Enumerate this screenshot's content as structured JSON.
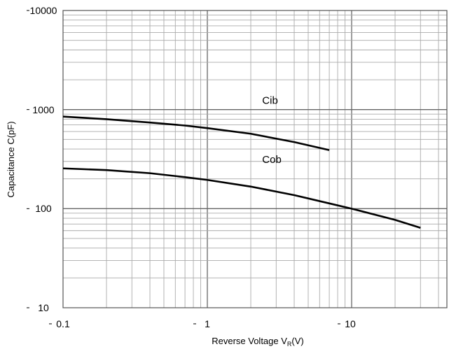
{
  "chart_data": {
    "type": "line",
    "title": "",
    "xlabel": "Reverse Voltage  V",
    "xlabel_sub": "R",
    "xlabel_suffix": "(V)",
    "ylabel": "Capacitance  C(pF)",
    "x_scale": "log",
    "y_scale": "log",
    "xlim": [
      0.1,
      50
    ],
    "ylim": [
      10,
      10000
    ],
    "grid": true,
    "x_tick_labels": [
      "0.1",
      "1",
      "10"
    ],
    "y_tick_labels": [
      "10",
      "100",
      "1000",
      "10000"
    ],
    "series": [
      {
        "name": "Cib",
        "color": "#000000",
        "x": [
          0.1,
          0.2,
          0.4,
          0.7,
          1.0,
          2.0,
          4.0,
          7.0
        ],
        "y": [
          850,
          800,
          740,
          690,
          650,
          570,
          470,
          390
        ]
      },
      {
        "name": "Cob",
        "color": "#000000",
        "x": [
          0.1,
          0.2,
          0.4,
          0.7,
          1.0,
          2.0,
          4.0,
          7.0,
          10.0,
          20.0,
          30.0
        ],
        "y": [
          255,
          245,
          228,
          208,
          195,
          167,
          137,
          113,
          100,
          77,
          64
        ]
      }
    ]
  }
}
